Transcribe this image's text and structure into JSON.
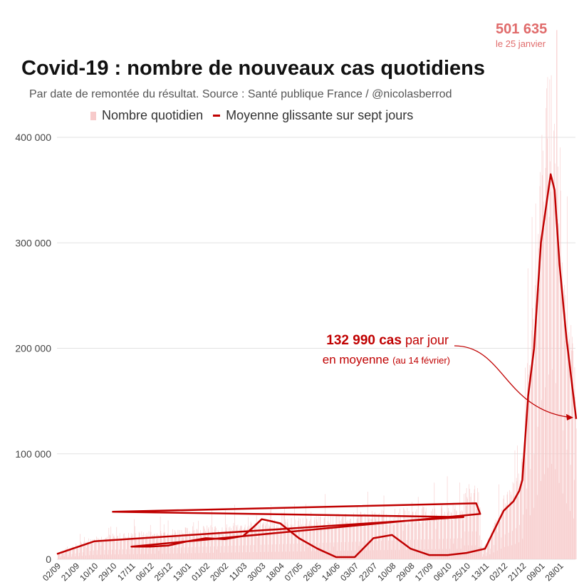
{
  "title": "Covid-19 : nombre de nouveaux cas quotidiens",
  "subtitle": "Par date de remontée du résultat. Source : Santé publique France / @nicolasberrod",
  "legend": {
    "bars": "Nombre quotidien",
    "line": "Moyenne glissante sur sept jours"
  },
  "peak_annotation": {
    "value": "501 635",
    "date": "le 25 janvier"
  },
  "avg_annotation": {
    "value": "132 990 cas",
    "line1_rest": "par jour",
    "line2": "en moyenne",
    "line2_note": "(au 14 février)"
  },
  "colors": {
    "bars": "#f7caca",
    "line": "#c00000",
    "peak_text": "#e06b6b",
    "grid": "#e2e2e2"
  },
  "chart_data": {
    "type": "bar",
    "x_tick_labels": [
      "02/09",
      "21/09",
      "10/10",
      "29/10",
      "17/11",
      "06/12",
      "25/12",
      "13/01",
      "01/02",
      "20/02",
      "11/03",
      "30/03",
      "18/04",
      "07/05",
      "26/05",
      "14/06",
      "03/07",
      "22/07",
      "10/08",
      "29/08",
      "17/09",
      "06/10",
      "25/10",
      "13/11",
      "02/12",
      "21/12",
      "09/01",
      "28/01"
    ],
    "y_tick_labels": [
      "0",
      "100 000",
      "200 000",
      "300 000",
      "400 000"
    ],
    "ylim": [
      0,
      400000
    ],
    "grid": true,
    "legend_position": "top",
    "series": [
      {
        "name": "Moyenne glissante sur sept jours",
        "kind": "line",
        "x": [
          "02/09",
          "21/09",
          "10/10",
          "22/10",
          "29/10",
          "04/11",
          "08/11",
          "17/11",
          "06/12",
          "25/12",
          "13/01",
          "01/02",
          "20/02",
          "11/03",
          "21/03",
          "30/03",
          "09/04",
          "18/04",
          "07/05",
          "26/05",
          "14/06",
          "03/07",
          "22/07",
          "10/08",
          "29/08",
          "17/09",
          "06/10",
          "25/10",
          "13/11",
          "02/12",
          "12/12",
          "18/12",
          "21/12",
          "27/12",
          "02/01",
          "09/01",
          "19/01",
          "23/01",
          "28/01",
          "04/02",
          "14/02"
        ],
        "values": [
          5000,
          11000,
          17000,
          40000,
          45000,
          53000,
          43000,
          12000,
          12000,
          13000,
          17000,
          20000,
          19000,
          22000,
          30000,
          38000,
          36000,
          34000,
          20000,
          10000,
          2000,
          2000,
          20000,
          23000,
          10000,
          4000,
          4000,
          6000,
          10000,
          46000,
          55000,
          65000,
          75000,
          155000,
          200000,
          300000,
          365000,
          350000,
          280000,
          210000,
          132990
        ]
      },
      {
        "name": "Nombre quotidien",
        "kind": "bar",
        "peak": {
          "x": "25/01",
          "value": 501635
        }
      }
    ]
  }
}
